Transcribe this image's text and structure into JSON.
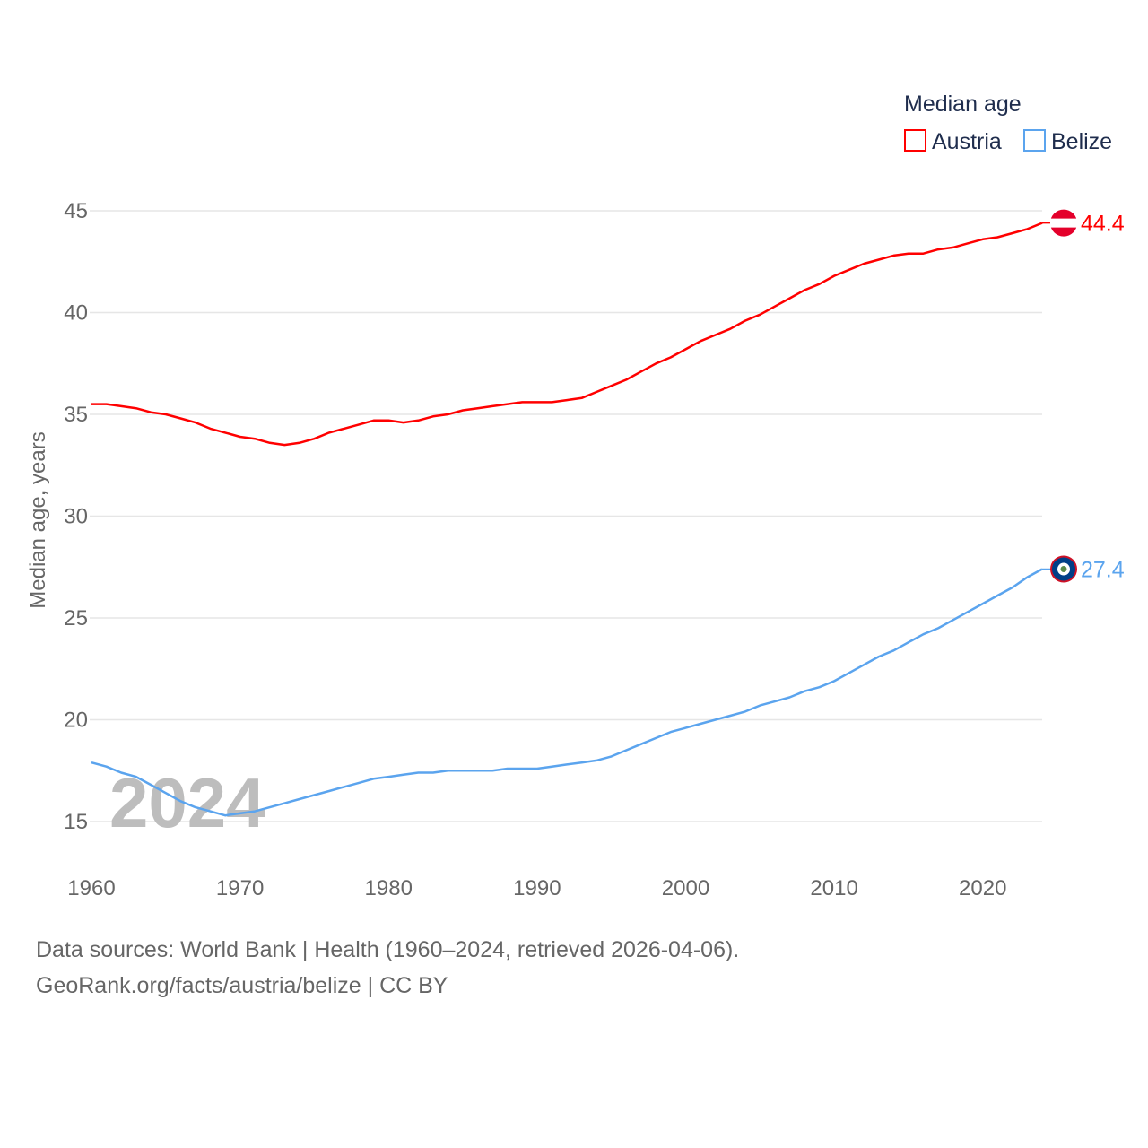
{
  "chart_data": {
    "type": "line",
    "title": "",
    "legend_title": "Median age",
    "legend_placement": "top-right",
    "ylabel": "Median age, years",
    "xlabel": "",
    "ylim": [
      13,
      46
    ],
    "xlim": [
      1960,
      2024
    ],
    "yticks": [
      15,
      20,
      25,
      30,
      35,
      40,
      45
    ],
    "xticks": [
      1960,
      1970,
      1980,
      1990,
      2000,
      2010,
      2020
    ],
    "grid": true,
    "year_watermark": "2024",
    "x": [
      1960,
      1961,
      1962,
      1963,
      1964,
      1965,
      1966,
      1967,
      1968,
      1969,
      1970,
      1971,
      1972,
      1973,
      1974,
      1975,
      1976,
      1977,
      1978,
      1979,
      1980,
      1981,
      1982,
      1983,
      1984,
      1985,
      1986,
      1987,
      1988,
      1989,
      1990,
      1991,
      1992,
      1993,
      1994,
      1995,
      1996,
      1997,
      1998,
      1999,
      2000,
      2001,
      2002,
      2003,
      2004,
      2005,
      2006,
      2007,
      2008,
      2009,
      2010,
      2011,
      2012,
      2013,
      2014,
      2015,
      2016,
      2017,
      2018,
      2019,
      2020,
      2021,
      2022,
      2023,
      2024
    ],
    "series": [
      {
        "name": "Austria",
        "color": "#ff0000",
        "end_label": "44.4",
        "values": [
          35.5,
          35.5,
          35.4,
          35.3,
          35.1,
          35.0,
          34.8,
          34.6,
          34.3,
          34.1,
          33.9,
          33.8,
          33.6,
          33.5,
          33.6,
          33.8,
          34.1,
          34.3,
          34.5,
          34.7,
          34.7,
          34.6,
          34.7,
          34.9,
          35.0,
          35.2,
          35.3,
          35.4,
          35.5,
          35.6,
          35.6,
          35.6,
          35.7,
          35.8,
          36.1,
          36.4,
          36.7,
          37.1,
          37.5,
          37.8,
          38.2,
          38.6,
          38.9,
          39.2,
          39.6,
          39.9,
          40.3,
          40.7,
          41.1,
          41.4,
          41.8,
          42.1,
          42.4,
          42.6,
          42.8,
          42.9,
          42.9,
          43.1,
          43.2,
          43.4,
          43.6,
          43.7,
          43.9,
          44.1,
          44.4
        ]
      },
      {
        "name": "Belize",
        "color": "#5ba4ee",
        "end_label": "27.4",
        "values": [
          17.9,
          17.7,
          17.4,
          17.2,
          16.8,
          16.4,
          16.0,
          15.7,
          15.5,
          15.3,
          15.4,
          15.5,
          15.7,
          15.9,
          16.1,
          16.3,
          16.5,
          16.7,
          16.9,
          17.1,
          17.2,
          17.3,
          17.4,
          17.4,
          17.5,
          17.5,
          17.5,
          17.5,
          17.6,
          17.6,
          17.6,
          17.7,
          17.8,
          17.9,
          18.0,
          18.2,
          18.5,
          18.8,
          19.1,
          19.4,
          19.6,
          19.8,
          20.0,
          20.2,
          20.4,
          20.7,
          20.9,
          21.1,
          21.4,
          21.6,
          21.9,
          22.3,
          22.7,
          23.1,
          23.4,
          23.8,
          24.2,
          24.5,
          24.9,
          25.3,
          25.7,
          26.1,
          26.5,
          27.0,
          27.4
        ]
      }
    ]
  },
  "footer": {
    "line1": "Data sources: World Bank | Health (1960–2024, retrieved 2026-04-06).",
    "line2": "GeoRank.org/facts/austria/belize | CC BY"
  }
}
